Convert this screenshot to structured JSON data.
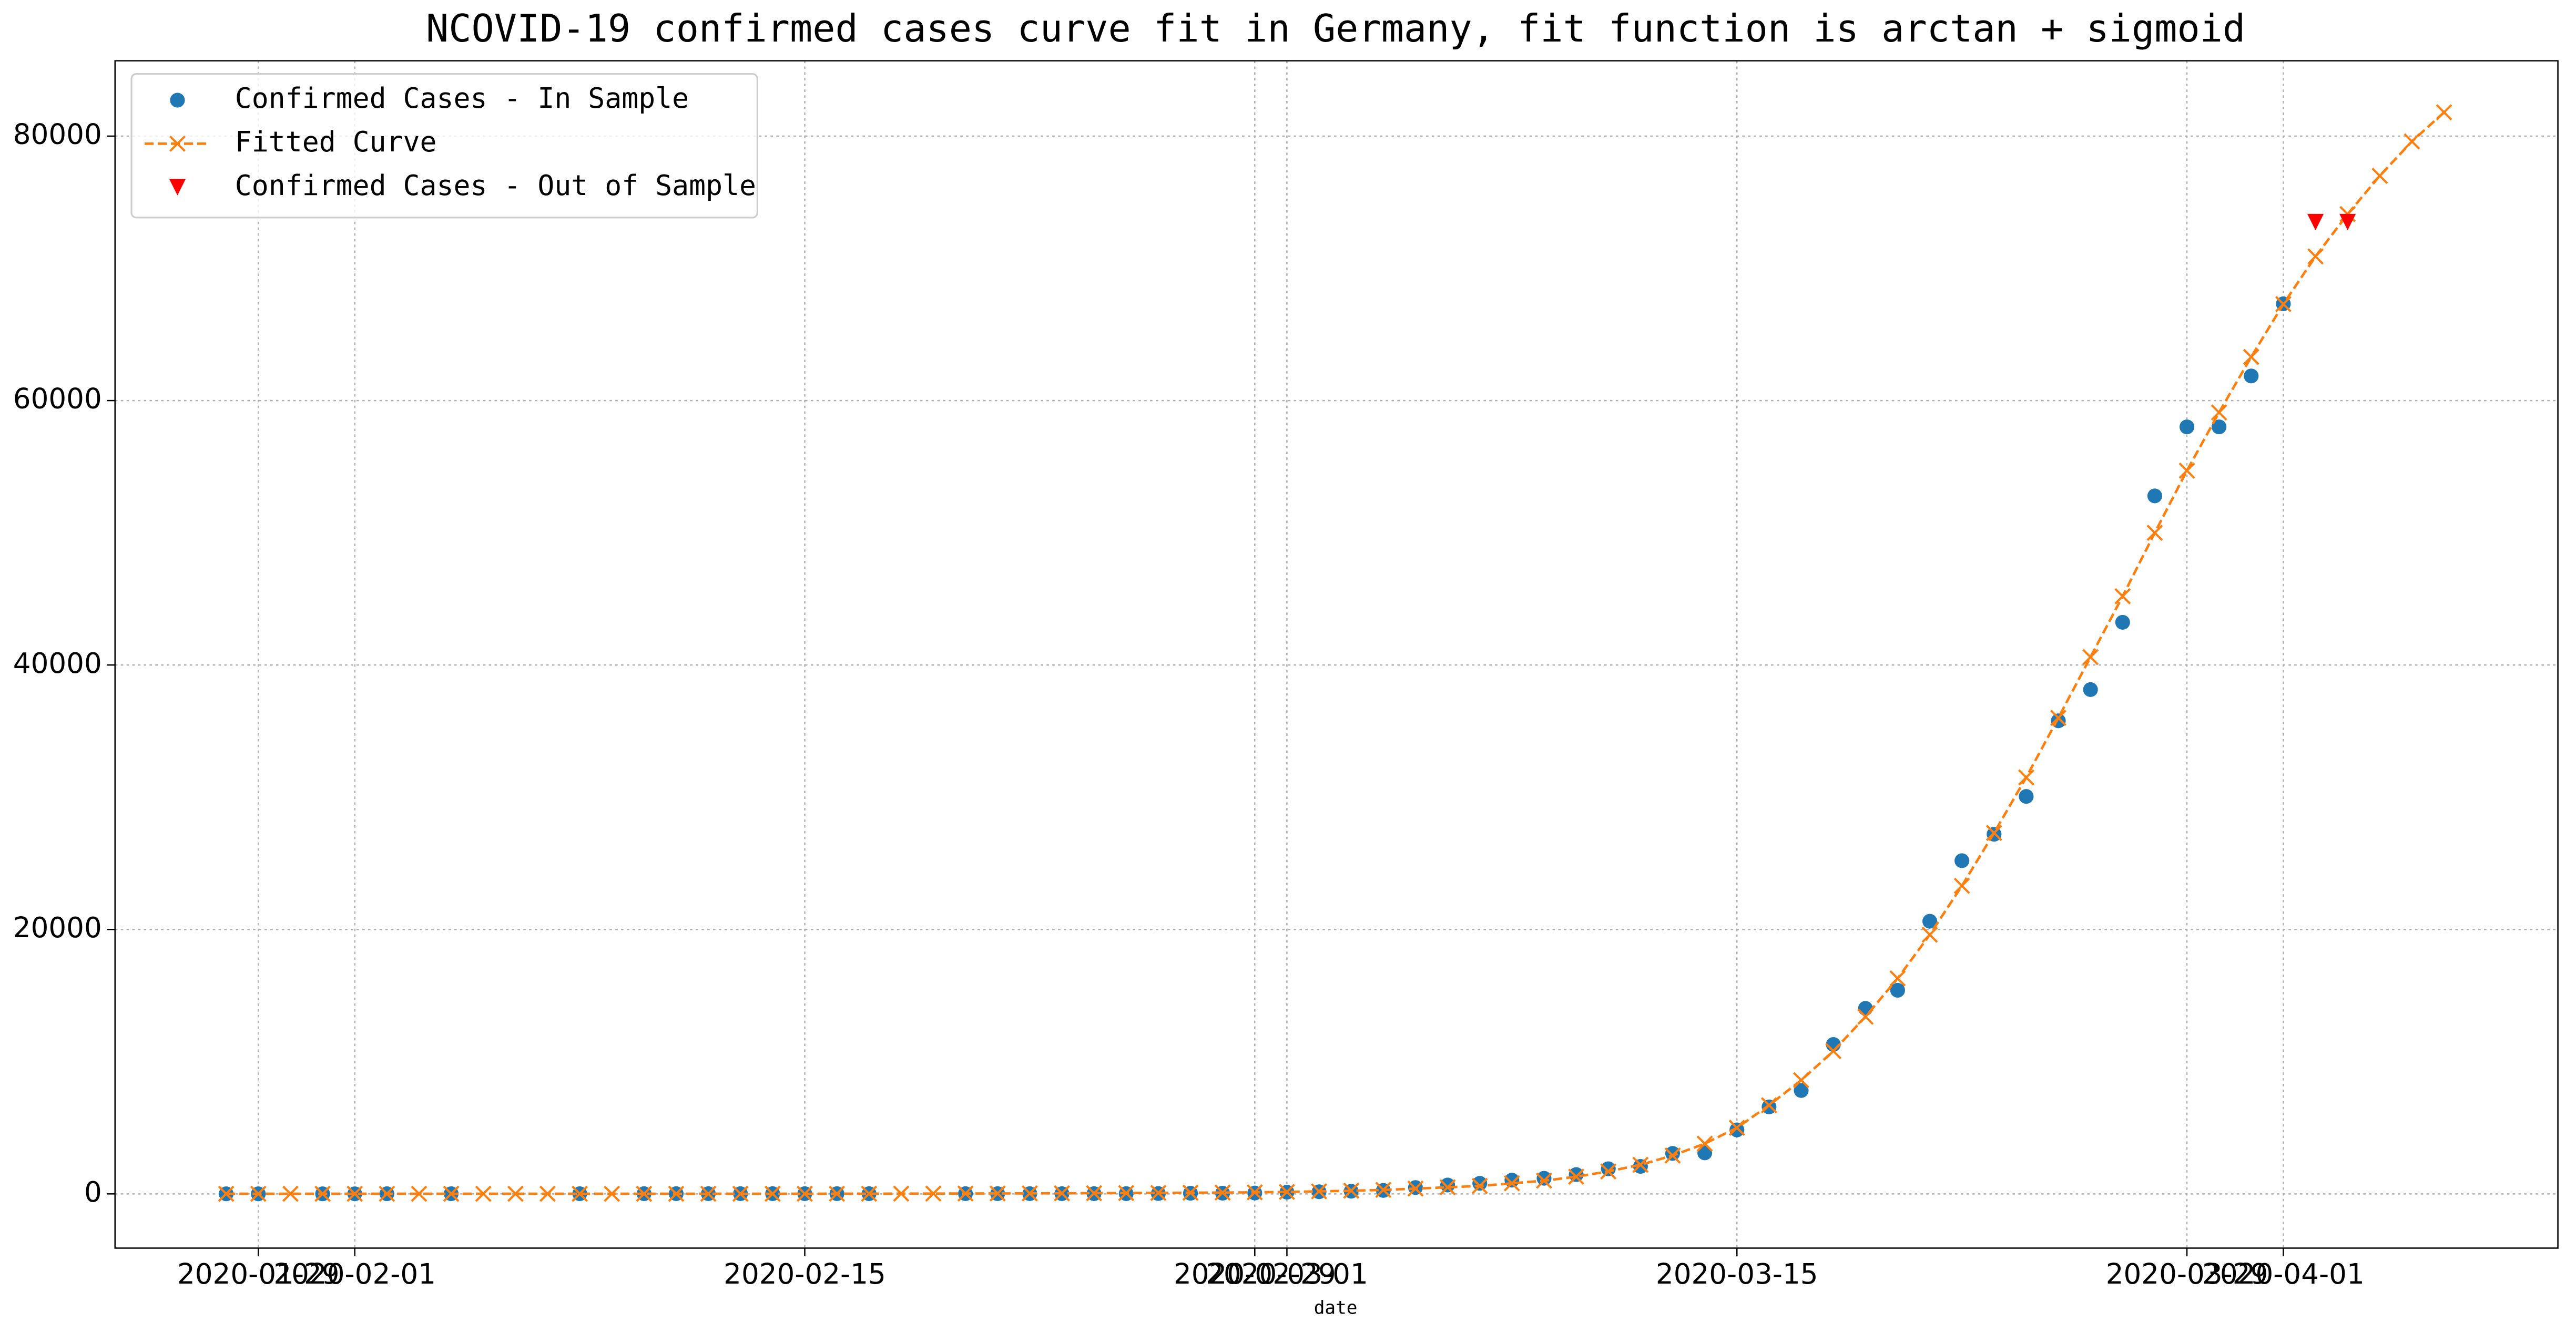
{
  "chart_data": {
    "type": "line",
    "title": "NCOVID-19 confirmed cases curve fit in Germany, fit function is arctan + sigmoid",
    "x_label": "date",
    "x": [
      "2020-01-28",
      "2020-01-29",
      "2020-01-30",
      "2020-01-31",
      "2020-02-01",
      "2020-02-02",
      "2020-02-03",
      "2020-02-04",
      "2020-02-05",
      "2020-02-06",
      "2020-02-07",
      "2020-02-08",
      "2020-02-09",
      "2020-02-10",
      "2020-02-11",
      "2020-02-12",
      "2020-02-13",
      "2020-02-14",
      "2020-02-15",
      "2020-02-16",
      "2020-02-17",
      "2020-02-18",
      "2020-02-19",
      "2020-02-20",
      "2020-02-21",
      "2020-02-22",
      "2020-02-23",
      "2020-02-24",
      "2020-02-25",
      "2020-02-26",
      "2020-02-27",
      "2020-02-28",
      "2020-02-29",
      "2020-03-01",
      "2020-03-02",
      "2020-03-03",
      "2020-03-04",
      "2020-03-05",
      "2020-03-06",
      "2020-03-07",
      "2020-03-08",
      "2020-03-09",
      "2020-03-10",
      "2020-03-11",
      "2020-03-12",
      "2020-03-13",
      "2020-03-14",
      "2020-03-15",
      "2020-03-16",
      "2020-03-17",
      "2020-03-18",
      "2020-03-19",
      "2020-03-20",
      "2020-03-21",
      "2020-03-22",
      "2020-03-23",
      "2020-03-24",
      "2020-03-25",
      "2020-03-26",
      "2020-03-27",
      "2020-03-28",
      "2020-03-29",
      "2020-03-30",
      "2020-03-31",
      "2020-04-01",
      "2020-04-02",
      "2020-04-03",
      "2020-04-04",
      "2020-04-05",
      "2020-04-06"
    ],
    "series": [
      {
        "name": "Confirmed Cases - In Sample",
        "color": "#1f77b4",
        "marker": "circle",
        "line": false,
        "values": [
          4,
          4,
          null,
          5,
          8,
          10,
          null,
          12,
          null,
          null,
          null,
          13,
          null,
          14,
          16,
          16,
          16,
          16,
          16,
          16,
          16,
          null,
          null,
          16,
          16,
          16,
          16,
          16,
          18,
          26,
          48,
          53,
          66,
          130,
          160,
          200,
          260,
          480,
          670,
          800,
          1040,
          1180,
          1460,
          1900,
          2080,
          3060,
          3100,
          4840,
          6580,
          7820,
          11300,
          14030,
          15400,
          20620,
          25200,
          27200,
          30060,
          35780,
          38140,
          43230,
          52790,
          58010,
          58010,
          61860,
          67320,
          null,
          null,
          null,
          null,
          null
        ]
      },
      {
        "name": "Fitted Curve",
        "color": "#ff7f0e",
        "marker": "x",
        "line": true,
        "values": [
          10,
          10,
          10,
          10,
          10,
          10,
          10,
          10,
          10,
          10,
          10,
          10,
          10,
          10,
          10,
          10,
          10,
          10,
          10,
          15,
          15,
          20,
          25,
          30,
          35,
          40,
          45,
          55,
          65,
          75,
          90,
          100,
          120,
          150,
          190,
          240,
          300,
          400,
          500,
          600,
          800,
          1000,
          1300,
          1700,
          2200,
          2900,
          3800,
          5000,
          6700,
          8600,
          10800,
          13400,
          16300,
          19600,
          23300,
          27300,
          31500,
          36000,
          40600,
          45200,
          50000,
          54700,
          59100,
          63300,
          67300,
          70900,
          74100,
          77000,
          79600,
          81800
        ]
      },
      {
        "name": "Confirmed Cases - Out of Sample",
        "color": "#ff0000",
        "marker": "triangle-down",
        "line": false,
        "values": [
          null,
          null,
          null,
          null,
          null,
          null,
          null,
          null,
          null,
          null,
          null,
          null,
          null,
          null,
          null,
          null,
          null,
          null,
          null,
          null,
          null,
          null,
          null,
          null,
          null,
          null,
          null,
          null,
          null,
          null,
          null,
          null,
          null,
          null,
          null,
          null,
          null,
          null,
          null,
          null,
          null,
          null,
          null,
          null,
          null,
          null,
          null,
          null,
          null,
          null,
          null,
          null,
          null,
          null,
          null,
          null,
          null,
          null,
          null,
          null,
          null,
          null,
          null,
          null,
          null,
          73500,
          73500,
          null,
          null,
          null
        ]
      }
    ],
    "xlim": [
      "2020-01-24T13:00",
      "2020-04-09T13:00"
    ],
    "xticks": [
      "2020-01-29",
      "2020-02-01",
      "2020-02-15",
      "2020-02-29",
      "2020-03-01",
      "2020-03-15",
      "2020-03-29",
      "2020-04-01"
    ],
    "ylim": [
      -4100,
      85700
    ],
    "yticks": [
      0,
      20000,
      40000,
      60000,
      80000
    ],
    "grid": true,
    "legend": "upper left"
  }
}
